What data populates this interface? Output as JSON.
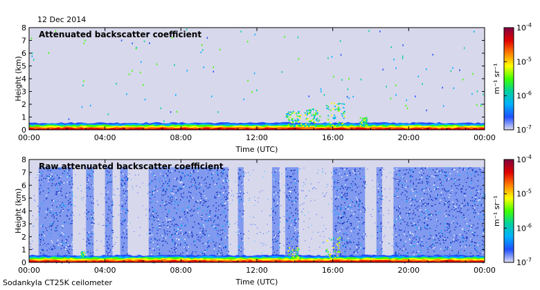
{
  "date": "12 Dec 2014",
  "footer": "Sodankyla CT25K ceilometer",
  "colors": {
    "background": "#d8d8ec",
    "colormap": [
      "#dcdcf0",
      "#2050ff",
      "#00b0ff",
      "#00d0a0",
      "#40ff00",
      "#ffff00",
      "#ff8000",
      "#e00000",
      "#800040"
    ]
  },
  "chart_data": [
    {
      "type": "heatmap",
      "title": "Attenuated backscatter coefficient",
      "xlabel": "Time (UTC)",
      "ylabel": "Height (km)",
      "x_ticks": [
        "00:00",
        "04:00",
        "08:00",
        "12:00",
        "16:00",
        "20:00",
        "00:00"
      ],
      "y_ticks": [
        "0",
        "1",
        "2",
        "3",
        "4",
        "5",
        "6",
        "7",
        "8"
      ],
      "ylim": [
        0,
        8
      ],
      "xlim_hours": [
        0,
        24
      ],
      "colorbar": {
        "scale": "log",
        "range": [
          1e-07,
          0.0001
        ],
        "unit_label": "m⁻¹ sr⁻¹",
        "ticks": [
          {
            "base": "10",
            "exp": "-4"
          },
          {
            "base": "10",
            "exp": "-5"
          },
          {
            "base": "10",
            "exp": "-6"
          },
          {
            "base": "10",
            "exp": "-7"
          }
        ]
      },
      "features": [
        {
          "kind": "surface-layer",
          "hours": [
            0,
            24
          ],
          "height_km": [
            0,
            0.4
          ]
        },
        {
          "kind": "cloud",
          "hours": [
            13.5,
            14.3
          ],
          "height_km": [
            0.3,
            1.5
          ]
        },
        {
          "kind": "cloud",
          "hours": [
            14.5,
            15.3
          ],
          "height_km": [
            0.3,
            1.7
          ]
        },
        {
          "kind": "cloud",
          "hours": [
            15.6,
            16.6
          ],
          "height_km": [
            0.3,
            2.2
          ]
        },
        {
          "kind": "cloud",
          "hours": [
            17.4,
            17.8
          ],
          "height_km": [
            0.3,
            1.0
          ]
        }
      ]
    },
    {
      "type": "heatmap",
      "title": "Raw attenuated backscatter coefficient",
      "xlabel": "Time (UTC)",
      "ylabel": "Height (km)",
      "x_ticks": [
        "00:00",
        "04:00",
        "08:00",
        "12:00",
        "16:00",
        "20:00",
        "00:00"
      ],
      "y_ticks": [
        "0",
        "1",
        "2",
        "3",
        "4",
        "5",
        "6",
        "7",
        "8"
      ],
      "ylim": [
        0,
        8
      ],
      "xlim_hours": [
        0,
        24
      ],
      "colorbar": {
        "scale": "log",
        "range": [
          1e-07,
          0.0001
        ],
        "unit_label": "m⁻¹ sr⁻¹",
        "ticks": [
          {
            "base": "10",
            "exp": "-4"
          },
          {
            "base": "10",
            "exp": "-5"
          },
          {
            "base": "10",
            "exp": "-6"
          },
          {
            "base": "10",
            "exp": "-7"
          }
        ]
      },
      "noise_bands_hours": [
        [
          0.5,
          2.3
        ],
        [
          3.0,
          3.4
        ],
        [
          4.0,
          4.4
        ],
        [
          4.8,
          5.2
        ],
        [
          6.3,
          10.5
        ],
        [
          11.0,
          11.3
        ],
        [
          12.8,
          13.2
        ],
        [
          13.5,
          14.2
        ],
        [
          16.0,
          17.7
        ],
        [
          18.3,
          18.6
        ],
        [
          19.2,
          24.0
        ]
      ],
      "noise_top_km": 7.4
    }
  ]
}
